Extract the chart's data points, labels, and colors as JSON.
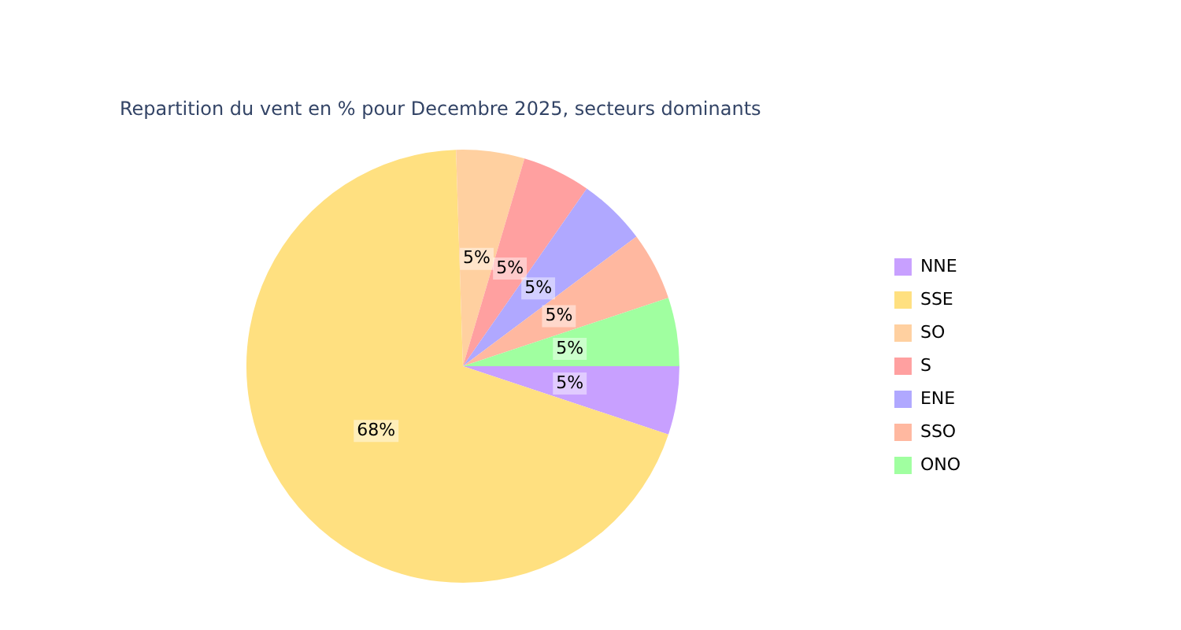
{
  "chart_data": {
    "type": "pie",
    "title": "Repartition du vent en % pour Decembre 2025, secteurs dominants",
    "categories": [
      "NNE",
      "SSE",
      "SO",
      "S",
      "ENE",
      "SSO",
      "ONO"
    ],
    "values": [
      5,
      68,
      5,
      5,
      5,
      5,
      5
    ],
    "value_labels": [
      "5%",
      "68%",
      "5%",
      "5%",
      "5%",
      "5%",
      "5%"
    ],
    "colors": [
      "#c8a0ff",
      "#ffe080",
      "#ffd0a0",
      "#ffa0a0",
      "#b0a8ff",
      "#ffb8a0",
      "#a0ffa0"
    ],
    "legend": "right"
  }
}
